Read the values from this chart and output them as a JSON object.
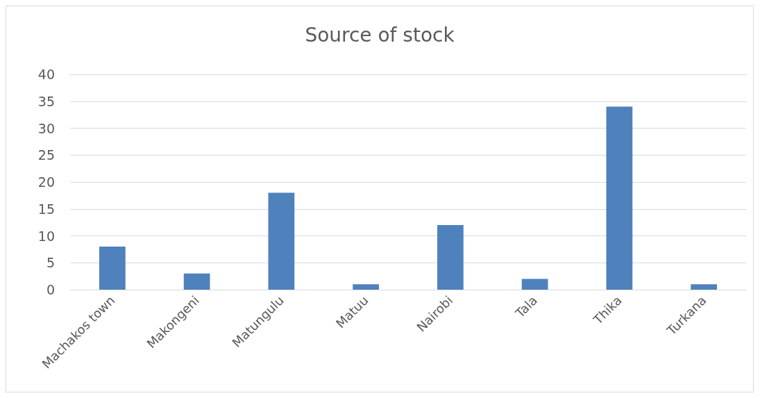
{
  "chart_data": {
    "type": "bar",
    "title": "Source of stock",
    "categories": [
      "Machakos town",
      "Makongeni",
      "Matungulu",
      "Matuu",
      "Nairobi",
      "Tala",
      "Thika",
      "Turkana"
    ],
    "values": [
      8,
      3,
      18,
      1,
      12,
      2,
      34,
      1
    ],
    "color": "#4f81bd",
    "ylim": [
      0,
      40
    ],
    "yticks": [
      0,
      5,
      10,
      15,
      20,
      25,
      30,
      35,
      40
    ],
    "grid": "y"
  }
}
